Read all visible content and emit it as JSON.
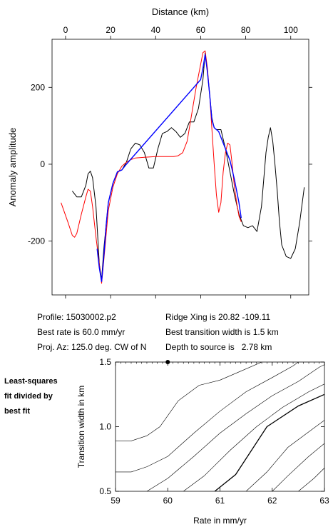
{
  "chart_data": [
    {
      "type": "line",
      "title": "",
      "xlabel": "Distance (km)",
      "ylabel": "Anomaly amplitude",
      "xlim": [
        -6,
        108
      ],
      "ylim": [
        -340,
        325
      ],
      "x_ticks": [
        0,
        20,
        40,
        60,
        80,
        100
      ],
      "y_ticks": [
        -200,
        0,
        200
      ],
      "grid": false,
      "series": [
        {
          "color": "#000000",
          "points": [
            [
              3,
              -70
            ],
            [
              5,
              -85
            ],
            [
              7,
              -85
            ],
            [
              9,
              -55
            ],
            [
              10,
              -25
            ],
            [
              11,
              -18
            ],
            [
              12,
              -35
            ],
            [
              13.5,
              -110
            ],
            [
              15,
              -260
            ],
            [
              16,
              -300
            ],
            [
              17,
              -220
            ],
            [
              19,
              -100
            ],
            [
              21,
              -50
            ],
            [
              23,
              -20
            ],
            [
              25,
              -15
            ],
            [
              27,
              5
            ],
            [
              29,
              40
            ],
            [
              31,
              55
            ],
            [
              33,
              50
            ],
            [
              35,
              30
            ],
            [
              37,
              -10
            ],
            [
              39,
              -10
            ],
            [
              41,
              40
            ],
            [
              43,
              80
            ],
            [
              45,
              85
            ],
            [
              47,
              95
            ],
            [
              49,
              85
            ],
            [
              51,
              70
            ],
            [
              53,
              80
            ],
            [
              55,
              110
            ],
            [
              57,
              110
            ],
            [
              59,
              145
            ],
            [
              61,
              220
            ],
            [
              62,
              290
            ],
            [
              63,
              240
            ],
            [
              64,
              180
            ],
            [
              65,
              120
            ],
            [
              66,
              95
            ],
            [
              67,
              90
            ],
            [
              69,
              90
            ],
            [
              71,
              40
            ],
            [
              73,
              -20
            ],
            [
              75,
              -80
            ],
            [
              77,
              -130
            ],
            [
              79,
              -160
            ],
            [
              81,
              -165
            ],
            [
              83,
              -160
            ],
            [
              85,
              -175
            ],
            [
              87,
              -110
            ],
            [
              89,
              30
            ],
            [
              90,
              70
            ],
            [
              91,
              95
            ],
            [
              92,
              60
            ],
            [
              93,
              0
            ],
            [
              94,
              -70
            ],
            [
              95,
              -150
            ],
            [
              96,
              -210
            ],
            [
              98,
              -240
            ],
            [
              100,
              -245
            ],
            [
              102,
              -220
            ],
            [
              104,
              -150
            ],
            [
              106,
              -60
            ]
          ]
        },
        {
          "color": "#ff0000",
          "points": [
            [
              -2,
              -100
            ],
            [
              1,
              -150
            ],
            [
              3,
              -185
            ],
            [
              4,
              -190
            ],
            [
              5,
              -180
            ],
            [
              7,
              -130
            ],
            [
              9,
              -85
            ],
            [
              10,
              -65
            ],
            [
              11,
              -70
            ],
            [
              12,
              -110
            ],
            [
              13.5,
              -190
            ],
            [
              15,
              -260
            ],
            [
              16,
              -310
            ],
            [
              17,
              -250
            ],
            [
              19,
              -120
            ],
            [
              21,
              -60
            ],
            [
              23,
              -25
            ],
            [
              25,
              -5
            ],
            [
              27,
              5
            ],
            [
              29,
              12
            ],
            [
              31,
              16
            ],
            [
              35,
              18
            ],
            [
              40,
              20
            ],
            [
              45,
              20
            ],
            [
              48,
              20
            ],
            [
              50,
              22
            ],
            [
              52,
              30
            ],
            [
              54,
              60
            ],
            [
              56,
              130
            ],
            [
              58,
              200
            ],
            [
              60,
              260
            ],
            [
              61,
              290
            ],
            [
              62,
              295
            ],
            [
              63,
              250
            ],
            [
              64,
              180
            ],
            [
              65,
              90
            ],
            [
              66,
              0
            ],
            [
              67,
              -80
            ],
            [
              68,
              -125
            ],
            [
              69,
              -100
            ],
            [
              70,
              -20
            ],
            [
              71,
              30
            ],
            [
              72,
              55
            ],
            [
              73,
              50
            ],
            [
              74,
              0
            ],
            [
              75,
              -60
            ],
            [
              76,
              -100
            ],
            [
              77,
              -135
            ],
            [
              78,
              -150
            ]
          ]
        },
        {
          "color": "#0000ff",
          "points": [
            [
              14,
              -220
            ],
            [
              15,
              -270
            ],
            [
              16,
              -305
            ],
            [
              17,
              -240
            ],
            [
              18,
              -160
            ],
            [
              19,
              -100
            ],
            [
              21,
              -50
            ],
            [
              23,
              -20
            ],
            [
              25,
              -15
            ],
            [
              27,
              0
            ],
            [
              60,
              220
            ],
            [
              61,
              250
            ],
            [
              62,
              285
            ],
            [
              63,
              240
            ],
            [
              64,
              180
            ],
            [
              65,
              115
            ],
            [
              66,
              95
            ],
            [
              67,
              90
            ],
            [
              68,
              85
            ],
            [
              69,
              70
            ],
            [
              71,
              40
            ],
            [
              73,
              10
            ],
            [
              75,
              -40
            ],
            [
              77,
              -100
            ],
            [
              78,
              -140
            ]
          ]
        }
      ]
    },
    {
      "type": "contour",
      "title": "",
      "xlabel": "Rate in mm/yr",
      "ylabel": "Transition width in km",
      "xlim": [
        59,
        63
      ],
      "ylim": [
        0.5,
        1.5
      ],
      "x_ticks": [
        59,
        60,
        61,
        62,
        63
      ],
      "y_ticks": [
        0.5,
        1.0,
        1.5
      ],
      "grid": false,
      "best_fit_marker": {
        "rate": 60.0,
        "width": 1.5
      },
      "contours": [
        {
          "thick": false,
          "points": [
            [
              59,
              0.89
            ],
            [
              59.3,
              0.89
            ],
            [
              59.6,
              0.93
            ],
            [
              59.85,
              1.0
            ],
            [
              60.2,
              1.2
            ],
            [
              60.6,
              1.32
            ],
            [
              61.0,
              1.36
            ],
            [
              61.4,
              1.43
            ],
            [
              61.8,
              1.5
            ]
          ]
        },
        {
          "thick": false,
          "points": [
            [
              59,
              0.65
            ],
            [
              59.3,
              0.65
            ],
            [
              59.6,
              0.69
            ],
            [
              60.0,
              0.77
            ],
            [
              60.5,
              0.95
            ],
            [
              61.0,
              1.12
            ],
            [
              61.5,
              1.27
            ],
            [
              62.0,
              1.38
            ],
            [
              62.4,
              1.47
            ],
            [
              62.5,
              1.5
            ]
          ]
        },
        {
          "thick": false,
          "points": [
            [
              59.6,
              0.5
            ],
            [
              60.0,
              0.6
            ],
            [
              60.5,
              0.77
            ],
            [
              61.0,
              0.95
            ],
            [
              61.5,
              1.1
            ],
            [
              62.0,
              1.24
            ],
            [
              62.5,
              1.35
            ],
            [
              62.9,
              1.46
            ],
            [
              63,
              1.48
            ]
          ]
        },
        {
          "thick": false,
          "points": [
            [
              60.3,
              0.5
            ],
            [
              60.7,
              0.62
            ],
            [
              61.2,
              0.82
            ],
            [
              61.7,
              1.0
            ],
            [
              62.2,
              1.15
            ],
            [
              62.7,
              1.27
            ],
            [
              63,
              1.33
            ]
          ]
        },
        {
          "thick": true,
          "points": [
            [
              60.9,
              0.5
            ],
            [
              61.3,
              0.63
            ],
            [
              61.9,
              1.0
            ],
            [
              62.5,
              1.16
            ],
            [
              63,
              1.25
            ]
          ]
        },
        {
          "thick": false,
          "points": [
            [
              61.5,
              0.5
            ],
            [
              61.9,
              0.65
            ],
            [
              62.3,
              0.84
            ],
            [
              62.7,
              0.96
            ],
            [
              63,
              1.05
            ]
          ]
        },
        {
          "thick": false,
          "points": [
            [
              62.0,
              0.5
            ],
            [
              62.3,
              0.62
            ],
            [
              62.7,
              0.77
            ],
            [
              63,
              0.87
            ]
          ]
        },
        {
          "thick": false,
          "points": [
            [
              62.5,
              0.5
            ],
            [
              62.8,
              0.6
            ],
            [
              63,
              0.68
            ]
          ]
        }
      ]
    }
  ],
  "info": {
    "profile": "Profile: 15030002.p2",
    "best_rate": "Best rate is 60.0 mm/yr",
    "proj_az": "Proj. Az: 125.0 deg. CW of N",
    "ridge_xing": "Ridge Xing is 20.82 -109.11",
    "best_width": "Best transition width is 1.5 km",
    "depth": "Depth to source is   2.78 km"
  },
  "note": {
    "line1": "Least-squares",
    "line2": "fit divided by",
    "line3": "best fit"
  }
}
